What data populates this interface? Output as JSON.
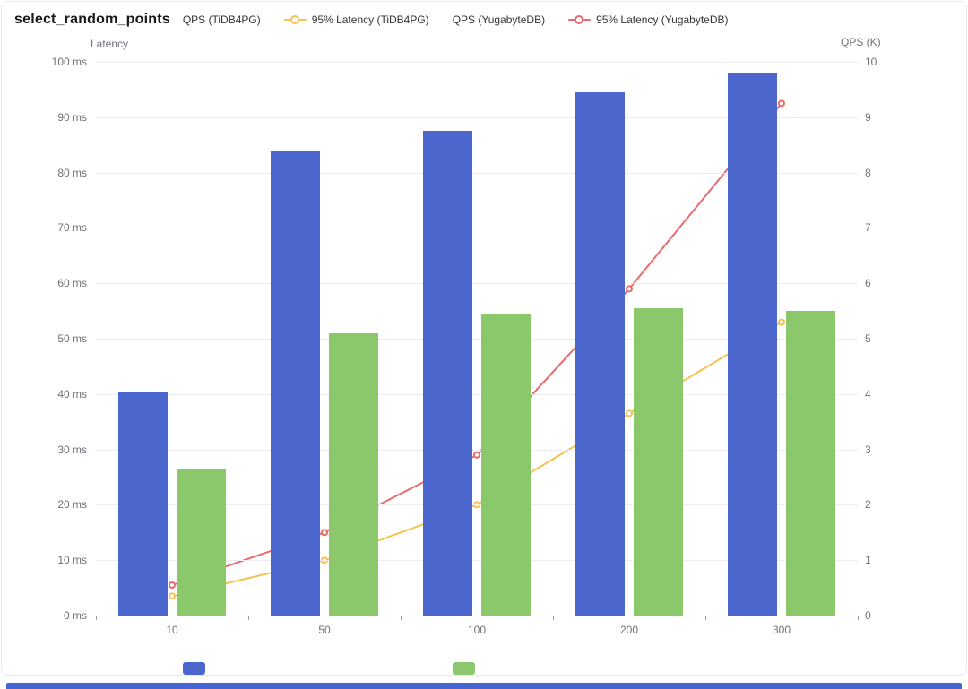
{
  "title": "select_random_points",
  "legend": {
    "items": [
      {
        "label": "QPS (TiDB4PG)",
        "marker": "bar",
        "color": "#4b66cd"
      },
      {
        "label": "95% Latency (TiDB4PG)",
        "marker": "line",
        "color": "#f4c24f"
      },
      {
        "label": "QPS (YugabyteDB)",
        "marker": "bar",
        "color": "#8bc86b"
      },
      {
        "label": "95% Latency (YugabyteDB)",
        "marker": "line",
        "color": "#e86a6a"
      }
    ]
  },
  "chart_data": {
    "type": "bar",
    "subtype": "combo bar + line, dual y-axis",
    "title": "select_random_points",
    "categories": [
      "10",
      "50",
      "100",
      "200",
      "300"
    ],
    "series": [
      {
        "name": "QPS (TiDB4PG)",
        "kind": "bar",
        "axis": "right",
        "color": "#4b66cd",
        "values": [
          4.05,
          8.4,
          8.75,
          9.45,
          9.8
        ]
      },
      {
        "name": "95% Latency (TiDB4PG)",
        "kind": "line",
        "axis": "left",
        "color": "#f4c24f",
        "values": [
          3.5,
          10,
          20,
          36.5,
          53
        ]
      },
      {
        "name": "QPS (YugabyteDB)",
        "kind": "bar",
        "axis": "right",
        "color": "#8bc86b",
        "values": [
          2.65,
          5.1,
          5.45,
          5.55,
          5.5
        ]
      },
      {
        "name": "95% Latency (YugabyteDB)",
        "kind": "line",
        "axis": "left",
        "color": "#e86a6a",
        "values": [
          5.5,
          15,
          29,
          59,
          92.5
        ]
      }
    ],
    "left_axis": {
      "name": "Latency",
      "min": 0,
      "max": 100,
      "tick_step": 10,
      "suffix": " ms"
    },
    "right_axis": {
      "name": "QPS (K)",
      "min": 0,
      "max": 10,
      "tick_step": 1,
      "suffix": ""
    },
    "grid": true,
    "legend_position": "top"
  },
  "footer": {
    "accent_color": "#4565d5"
  }
}
